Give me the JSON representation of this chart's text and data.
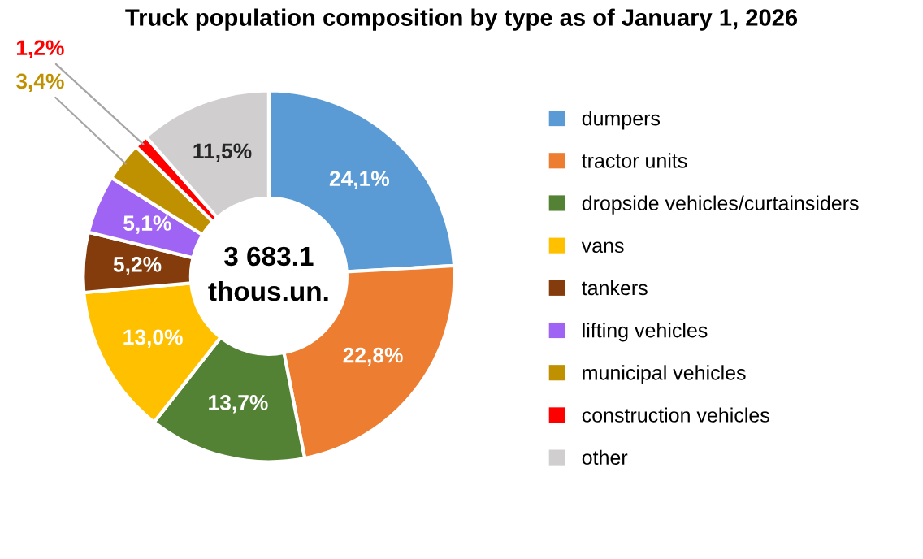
{
  "chart_data": {
    "type": "donut",
    "title": "Truck population composition by type as of January 1, 2026",
    "categories": [
      "dumpers",
      "tractor units",
      "dropside vehicles/curtainsiders",
      "vans",
      "tankers",
      "lifting vehicles",
      "municipal vehicles",
      "construction vehicles",
      "other"
    ],
    "values": [
      24.1,
      22.8,
      13.7,
      13.0,
      5.2,
      5.1,
      3.4,
      1.2,
      11.5
    ],
    "value_labels": [
      "24,1%",
      "22,8%",
      "13,7%",
      "13,0%",
      "5,2%",
      "5,1%",
      "3,4%",
      "1,2%",
      "11,5%"
    ],
    "colors": [
      "#5b9bd5",
      "#ed7d31",
      "#548235",
      "#ffc000",
      "#843c0c",
      "#a064f5",
      "#bf9000",
      "#ff0000",
      "#d0cece"
    ],
    "annotations": [
      "3 683.1\nthous.un."
    ],
    "legend": "right"
  }
}
